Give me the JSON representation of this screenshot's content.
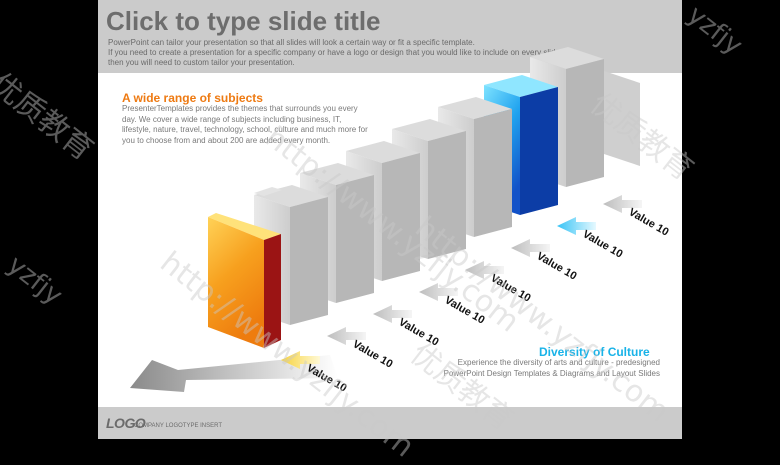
{
  "slide": {
    "title": "Click to type slide title",
    "subtitle_line1": "PowerPoint can tailor your presentation so that all slides will look a certain way or fit a specific template.",
    "subtitle_line2": "If you need to create a presentation for a specific company or have a logo or design that you would like to include on every slide,",
    "subtitle_line3": "then you will need to custom tailor your presentation."
  },
  "section1": {
    "title": "A wide range of subjects",
    "body": "PresenterTemplates provides the themes that surrounds you every day. We cover a wide range of subjects including business, IT, lifestyle, nature, travel, technology, school, culture and much more for you to choose from and about 200 are added every month."
  },
  "section2": {
    "title": "Diversity of Culture",
    "body": "Experience the diversity of arts and culture - predesigned PowerPoint Design Templates & Diagrams and Layout Slides"
  },
  "footer": {
    "logo": "LOGO",
    "logotype": "COMPANY LOGOTYPE INSERT"
  },
  "value_labels": [
    "Value 10",
    "Value 10",
    "Value 10",
    "Value 10",
    "Value 10",
    "Value 10",
    "Value 10",
    "Value 10"
  ],
  "colors": {
    "highlight_orange": "#f39a1b",
    "highlight_blue": "#1e90e6",
    "book_gray": "#d6d6d6",
    "title_gray": "#6d6d6d"
  },
  "watermark": {
    "url": "http://www.yzfjy.com",
    "brand": "优质教育",
    "short": "yzfjy"
  }
}
